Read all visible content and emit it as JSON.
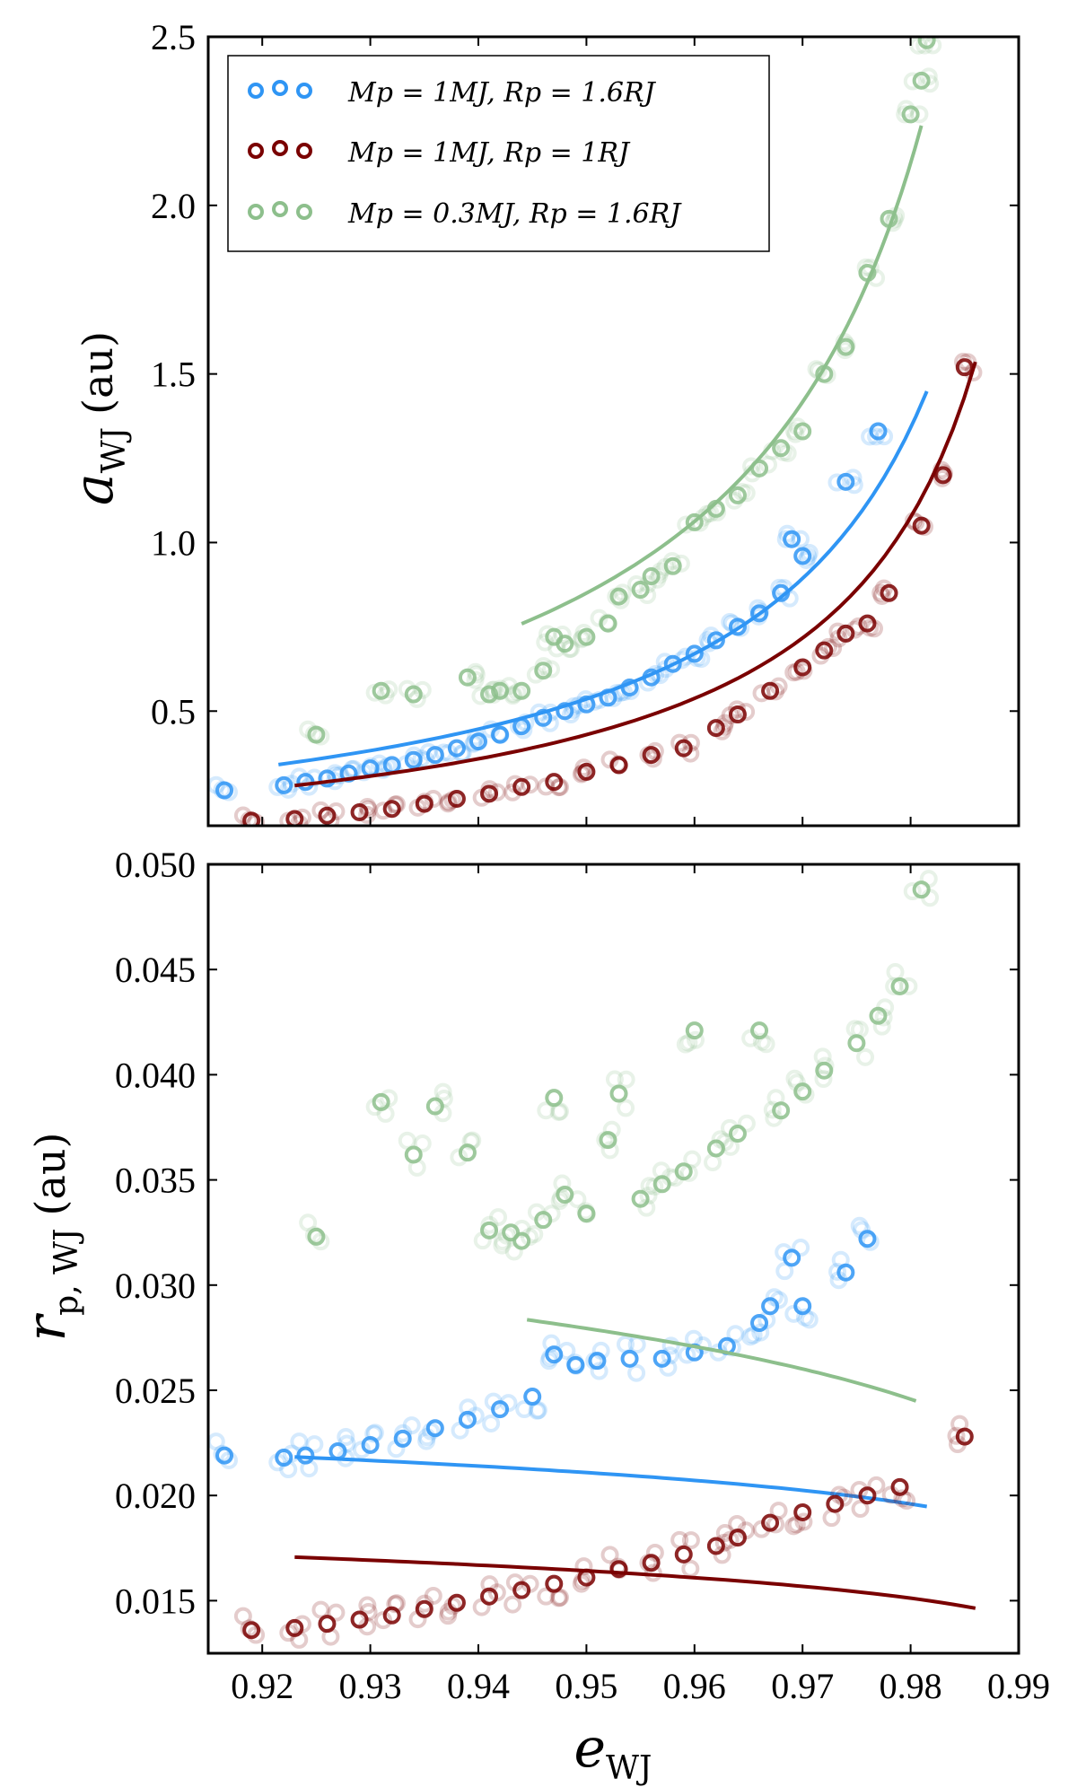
{
  "figure": {
    "xlabel": {
      "symbol": "e",
      "subscript": "WJ"
    },
    "xlim": [
      0.915,
      0.99
    ],
    "xticks": [
      "0.92",
      "0.93",
      "0.94",
      "0.95",
      "0.96",
      "0.97",
      "0.98",
      "0.99"
    ],
    "colors": {
      "blue": "#2f95f4",
      "red": "#7a0000",
      "green": "#8dbf8c"
    }
  },
  "legend": {
    "placement": "top-left",
    "entries": [
      {
        "label": "Mp = 1MJ, Rp = 1.6RJ",
        "color": "#2f95f4"
      },
      {
        "label": "Mp = 1MJ, Rp = 1RJ",
        "color": "#7a0000"
      },
      {
        "label": "Mp = 0.3MJ, Rp = 1.6RJ",
        "color": "#8dbf8c"
      }
    ]
  },
  "chart_data": [
    {
      "type": "scatter",
      "ylabel": "a_WJ (au)",
      "ylabel_parts": {
        "symbol": "a",
        "subscript": "WJ",
        "unit": "(au)"
      },
      "xlim": [
        0.915,
        0.99
      ],
      "ylim": [
        0.16,
        2.5
      ],
      "yticks": [
        "0.5",
        "1.0",
        "1.5",
        "2.0",
        "2.5"
      ],
      "series": [
        {
          "name": "Mp = 1MJ, Rp = 1.6RJ",
          "color": "#2f95f4",
          "trend": {
            "x0": 0.9215,
            "x1": 0.9815,
            "model": "a = 0.0268 / (1 - e)"
          },
          "points": [
            [
              0.9165,
              0.265
            ],
            [
              0.922,
              0.28
            ],
            [
              0.924,
              0.29
            ],
            [
              0.926,
              0.3
            ],
            [
              0.928,
              0.315
            ],
            [
              0.93,
              0.33
            ],
            [
              0.932,
              0.34
            ],
            [
              0.934,
              0.355
            ],
            [
              0.936,
              0.37
            ],
            [
              0.938,
              0.39
            ],
            [
              0.94,
              0.41
            ],
            [
              0.942,
              0.43
            ],
            [
              0.944,
              0.455
            ],
            [
              0.946,
              0.48
            ],
            [
              0.948,
              0.5
            ],
            [
              0.95,
              0.52
            ],
            [
              0.952,
              0.54
            ],
            [
              0.954,
              0.57
            ],
            [
              0.956,
              0.6
            ],
            [
              0.958,
              0.64
            ],
            [
              0.96,
              0.67
            ],
            [
              0.962,
              0.71
            ],
            [
              0.964,
              0.75
            ],
            [
              0.966,
              0.79
            ],
            [
              0.968,
              0.85
            ],
            [
              0.97,
              0.96
            ],
            [
              0.969,
              1.01
            ],
            [
              0.974,
              1.18
            ],
            [
              0.977,
              1.33
            ]
          ]
        },
        {
          "name": "Mp = 1MJ, Rp = 1RJ",
          "color": "#7a0000",
          "trend": {
            "x0": 0.923,
            "x1": 0.986,
            "model": "a = 0.0215 / (1 - e)"
          },
          "points": [
            [
              0.919,
              0.175
            ],
            [
              0.923,
              0.18
            ],
            [
              0.926,
              0.19
            ],
            [
              0.929,
              0.2
            ],
            [
              0.932,
              0.21
            ],
            [
              0.935,
              0.225
            ],
            [
              0.938,
              0.24
            ],
            [
              0.941,
              0.255
            ],
            [
              0.944,
              0.275
            ],
            [
              0.947,
              0.29
            ],
            [
              0.95,
              0.32
            ],
            [
              0.953,
              0.34
            ],
            [
              0.956,
              0.37
            ],
            [
              0.959,
              0.39
            ],
            [
              0.962,
              0.45
            ],
            [
              0.964,
              0.49
            ],
            [
              0.967,
              0.56
            ],
            [
              0.97,
              0.63
            ],
            [
              0.972,
              0.68
            ],
            [
              0.974,
              0.73
            ],
            [
              0.976,
              0.76
            ],
            [
              0.978,
              0.85
            ],
            [
              0.981,
              1.05
            ],
            [
              0.983,
              1.2
            ],
            [
              0.985,
              1.52
            ]
          ]
        },
        {
          "name": "Mp = 0.3MJ, Rp = 1.6RJ",
          "color": "#8dbf8c",
          "trend": {
            "x0": 0.944,
            "x1": 0.981,
            "model": "a = 0.0425 / (1 - e)"
          },
          "points": [
            [
              0.925,
              0.43
            ],
            [
              0.931,
              0.56
            ],
            [
              0.934,
              0.55
            ],
            [
              0.939,
              0.6
            ],
            [
              0.941,
              0.55
            ],
            [
              0.942,
              0.56
            ],
            [
              0.944,
              0.56
            ],
            [
              0.946,
              0.62
            ],
            [
              0.947,
              0.72
            ],
            [
              0.948,
              0.7
            ],
            [
              0.95,
              0.72
            ],
            [
              0.952,
              0.76
            ],
            [
              0.953,
              0.84
            ],
            [
              0.955,
              0.86
            ],
            [
              0.956,
              0.9
            ],
            [
              0.958,
              0.93
            ],
            [
              0.96,
              1.06
            ],
            [
              0.962,
              1.1
            ],
            [
              0.964,
              1.14
            ],
            [
              0.966,
              1.22
            ],
            [
              0.968,
              1.28
            ],
            [
              0.97,
              1.33
            ],
            [
              0.972,
              1.5
            ],
            [
              0.974,
              1.58
            ],
            [
              0.976,
              1.8
            ],
            [
              0.978,
              1.96
            ],
            [
              0.98,
              2.27
            ],
            [
              0.981,
              2.37
            ],
            [
              0.9815,
              2.49
            ]
          ]
        }
      ]
    },
    {
      "type": "scatter",
      "ylabel": "r_p,WJ (au)",
      "ylabel_parts": {
        "symbol": "r",
        "subscript": "p, WJ",
        "unit": "(au)"
      },
      "xlim": [
        0.915,
        0.99
      ],
      "ylim": [
        0.0125,
        0.05
      ],
      "yticks": [
        "0.015",
        "0.020",
        "0.025",
        "0.030",
        "0.035",
        "0.040",
        "0.045",
        "0.050"
      ],
      "series": [
        {
          "name": "Mp = 1MJ, Rp = 1.6RJ",
          "color": "#2f95f4",
          "trend": {
            "x0": 0.923,
            "x1": 0.9815,
            "model": "r = a(1 - e), a = 0.0268 / (1 - e)^0.92"
          },
          "points": [
            [
              0.9165,
              0.0219
            ],
            [
              0.922,
              0.0218
            ],
            [
              0.924,
              0.0219
            ],
            [
              0.927,
              0.0221
            ],
            [
              0.93,
              0.0224
            ],
            [
              0.933,
              0.0227
            ],
            [
              0.936,
              0.0232
            ],
            [
              0.939,
              0.0236
            ],
            [
              0.942,
              0.0241
            ],
            [
              0.945,
              0.0247
            ],
            [
              0.947,
              0.0267
            ],
            [
              0.949,
              0.0262
            ],
            [
              0.951,
              0.0264
            ],
            [
              0.954,
              0.0265
            ],
            [
              0.957,
              0.0265
            ],
            [
              0.96,
              0.0268
            ],
            [
              0.963,
              0.0271
            ],
            [
              0.966,
              0.0282
            ],
            [
              0.967,
              0.029
            ],
            [
              0.969,
              0.0313
            ],
            [
              0.97,
              0.029
            ],
            [
              0.974,
              0.0306
            ],
            [
              0.976,
              0.0322
            ]
          ]
        },
        {
          "name": "Mp = 1MJ, Rp = 1RJ",
          "color": "#7a0000",
          "trend": {
            "x0": 0.923,
            "x1": 0.986,
            "model": "r = a(1 - e), a = 0.0215 / (1 - e)^0.91"
          },
          "points": [
            [
              0.919,
              0.0136
            ],
            [
              0.923,
              0.0137
            ],
            [
              0.926,
              0.0139
            ],
            [
              0.929,
              0.0141
            ],
            [
              0.932,
              0.0143
            ],
            [
              0.935,
              0.0146
            ],
            [
              0.938,
              0.0149
            ],
            [
              0.941,
              0.0152
            ],
            [
              0.944,
              0.0155
            ],
            [
              0.947,
              0.0158
            ],
            [
              0.95,
              0.0161
            ],
            [
              0.953,
              0.0165
            ],
            [
              0.956,
              0.0168
            ],
            [
              0.959,
              0.0172
            ],
            [
              0.962,
              0.0176
            ],
            [
              0.964,
              0.018
            ],
            [
              0.967,
              0.0187
            ],
            [
              0.97,
              0.0192
            ],
            [
              0.973,
              0.0196
            ],
            [
              0.976,
              0.02
            ],
            [
              0.979,
              0.0204
            ],
            [
              0.985,
              0.0228
            ]
          ]
        },
        {
          "name": "Mp = 0.3MJ, Rp = 1.6RJ",
          "color": "#8dbf8c",
          "trend": {
            "x0": 0.9445,
            "x1": 0.9805,
            "model": "r = a(1 - e), a = 0.0425 / (1 - e)^0.86"
          },
          "points": [
            [
              0.925,
              0.0323
            ],
            [
              0.931,
              0.0387
            ],
            [
              0.934,
              0.0362
            ],
            [
              0.936,
              0.0385
            ],
            [
              0.939,
              0.0363
            ],
            [
              0.941,
              0.0326
            ],
            [
              0.943,
              0.0325
            ],
            [
              0.944,
              0.0321
            ],
            [
              0.946,
              0.0331
            ],
            [
              0.947,
              0.0389
            ],
            [
              0.948,
              0.0343
            ],
            [
              0.95,
              0.0334
            ],
            [
              0.952,
              0.0369
            ],
            [
              0.953,
              0.0391
            ],
            [
              0.955,
              0.0341
            ],
            [
              0.957,
              0.0348
            ],
            [
              0.959,
              0.0354
            ],
            [
              0.96,
              0.0421
            ],
            [
              0.962,
              0.0365
            ],
            [
              0.964,
              0.0372
            ],
            [
              0.966,
              0.0421
            ],
            [
              0.968,
              0.0383
            ],
            [
              0.97,
              0.0392
            ],
            [
              0.972,
              0.0402
            ],
            [
              0.975,
              0.0415
            ],
            [
              0.977,
              0.0428
            ],
            [
              0.979,
              0.0442
            ],
            [
              0.981,
              0.0488
            ]
          ]
        }
      ]
    }
  ]
}
